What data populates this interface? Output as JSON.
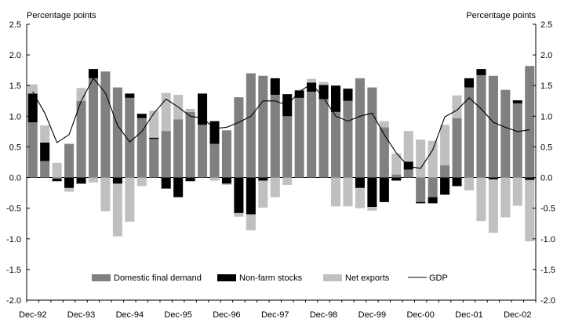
{
  "chart_data": {
    "type": "bar",
    "stacked": true,
    "unit_left": "Percentage points",
    "unit_right": "Percentage points",
    "ylim": [
      -2.0,
      2.5
    ],
    "yticks": [
      "2.5",
      "2.0",
      "1.5",
      "1.0",
      "0.5",
      "0.0",
      "-0.5",
      "-1.0",
      "-1.5",
      "-2.0"
    ],
    "ytick_values": [
      2.5,
      2.0,
      1.5,
      1.0,
      0.5,
      0.0,
      -0.5,
      -1.0,
      -1.5,
      -2.0
    ],
    "x_tick_labels": [
      {
        "label": "Dec-92",
        "index": 0
      },
      {
        "label": "Dec-93",
        "index": 4
      },
      {
        "label": "Dec-94",
        "index": 8
      },
      {
        "label": "Dec-95",
        "index": 12
      },
      {
        "label": "Dec-96",
        "index": 16
      },
      {
        "label": "Dec-97",
        "index": 20
      },
      {
        "label": "Dec-98",
        "index": 24
      },
      {
        "label": "Dec-99",
        "index": 28
      },
      {
        "label": "Dec-00",
        "index": 32
      },
      {
        "label": "Dec-01",
        "index": 36
      },
      {
        "label": "Dec-02",
        "index": 40
      }
    ],
    "colors": {
      "domestic": "#808080",
      "stocks": "#000000",
      "net_exports": "#c0c0c0",
      "gdp": "#000000",
      "axis": "#000000"
    },
    "legend_position": "bottom-center",
    "series": [
      {
        "name": "Domestic final demand",
        "key": "domestic",
        "values": [
          0.9,
          0.27,
          -0.02,
          0.55,
          1.25,
          1.62,
          1.73,
          1.47,
          1.3,
          0.97,
          0.63,
          0.76,
          0.95,
          1.07,
          0.86,
          0.55,
          0.77,
          1.31,
          1.7,
          1.66,
          1.35,
          1.0,
          1.3,
          1.4,
          1.28,
          1.07,
          1.25,
          1.62,
          1.47,
          0.82,
          0.05,
          0.13,
          -0.4,
          -0.32,
          0.2,
          0.97,
          1.47,
          1.67,
          1.66,
          1.43,
          1.21,
          1.82
        ]
      },
      {
        "name": "Non-farm stocks",
        "key": "stocks",
        "values": [
          0.47,
          0.3,
          -0.04,
          -0.17,
          -0.1,
          0.15,
          0.0,
          -0.1,
          0.07,
          0.07,
          0.02,
          -0.18,
          -0.32,
          -0.06,
          0.51,
          0.37,
          -0.1,
          -0.58,
          -0.6,
          -0.05,
          0.27,
          0.36,
          0.12,
          0.15,
          0.23,
          0.43,
          0.2,
          -0.17,
          -0.48,
          -0.4,
          -0.05,
          0.13,
          -0.02,
          -0.1,
          -0.28,
          -0.14,
          0.15,
          0.1,
          -0.03,
          0.0,
          0.05,
          -0.04
        ]
      },
      {
        "name": "Net exports",
        "key": "net_exports",
        "values": [
          0.15,
          0.28,
          0.24,
          -0.06,
          0.21,
          -0.08,
          -0.55,
          -0.86,
          -0.72,
          -0.14,
          0.44,
          0.62,
          0.4,
          0.05,
          0.0,
          -0.05,
          -0.02,
          -0.06,
          -0.26,
          -0.44,
          -0.32,
          -0.12,
          0.01,
          0.06,
          0.05,
          -0.47,
          -0.47,
          -0.33,
          -0.06,
          0.1,
          0.34,
          0.5,
          0.62,
          0.6,
          0.66,
          0.37,
          -0.21,
          -0.71,
          -0.87,
          -0.65,
          -0.46,
          -1.0
        ]
      },
      {
        "name": "GDP",
        "key": "gdp",
        "type": "line",
        "values": [
          1.4,
          1.05,
          0.57,
          0.7,
          1.25,
          1.62,
          1.38,
          0.85,
          0.58,
          0.75,
          1.05,
          1.28,
          1.15,
          1.0,
          0.97,
          0.8,
          0.82,
          0.9,
          1.0,
          1.25,
          1.25,
          1.18,
          1.4,
          1.53,
          1.3,
          1.0,
          0.92,
          1.0,
          1.05,
          0.7,
          0.4,
          0.18,
          0.15,
          0.45,
          0.99,
          1.1,
          1.3,
          1.12,
          0.9,
          0.82,
          0.75,
          0.78
        ]
      }
    ]
  }
}
